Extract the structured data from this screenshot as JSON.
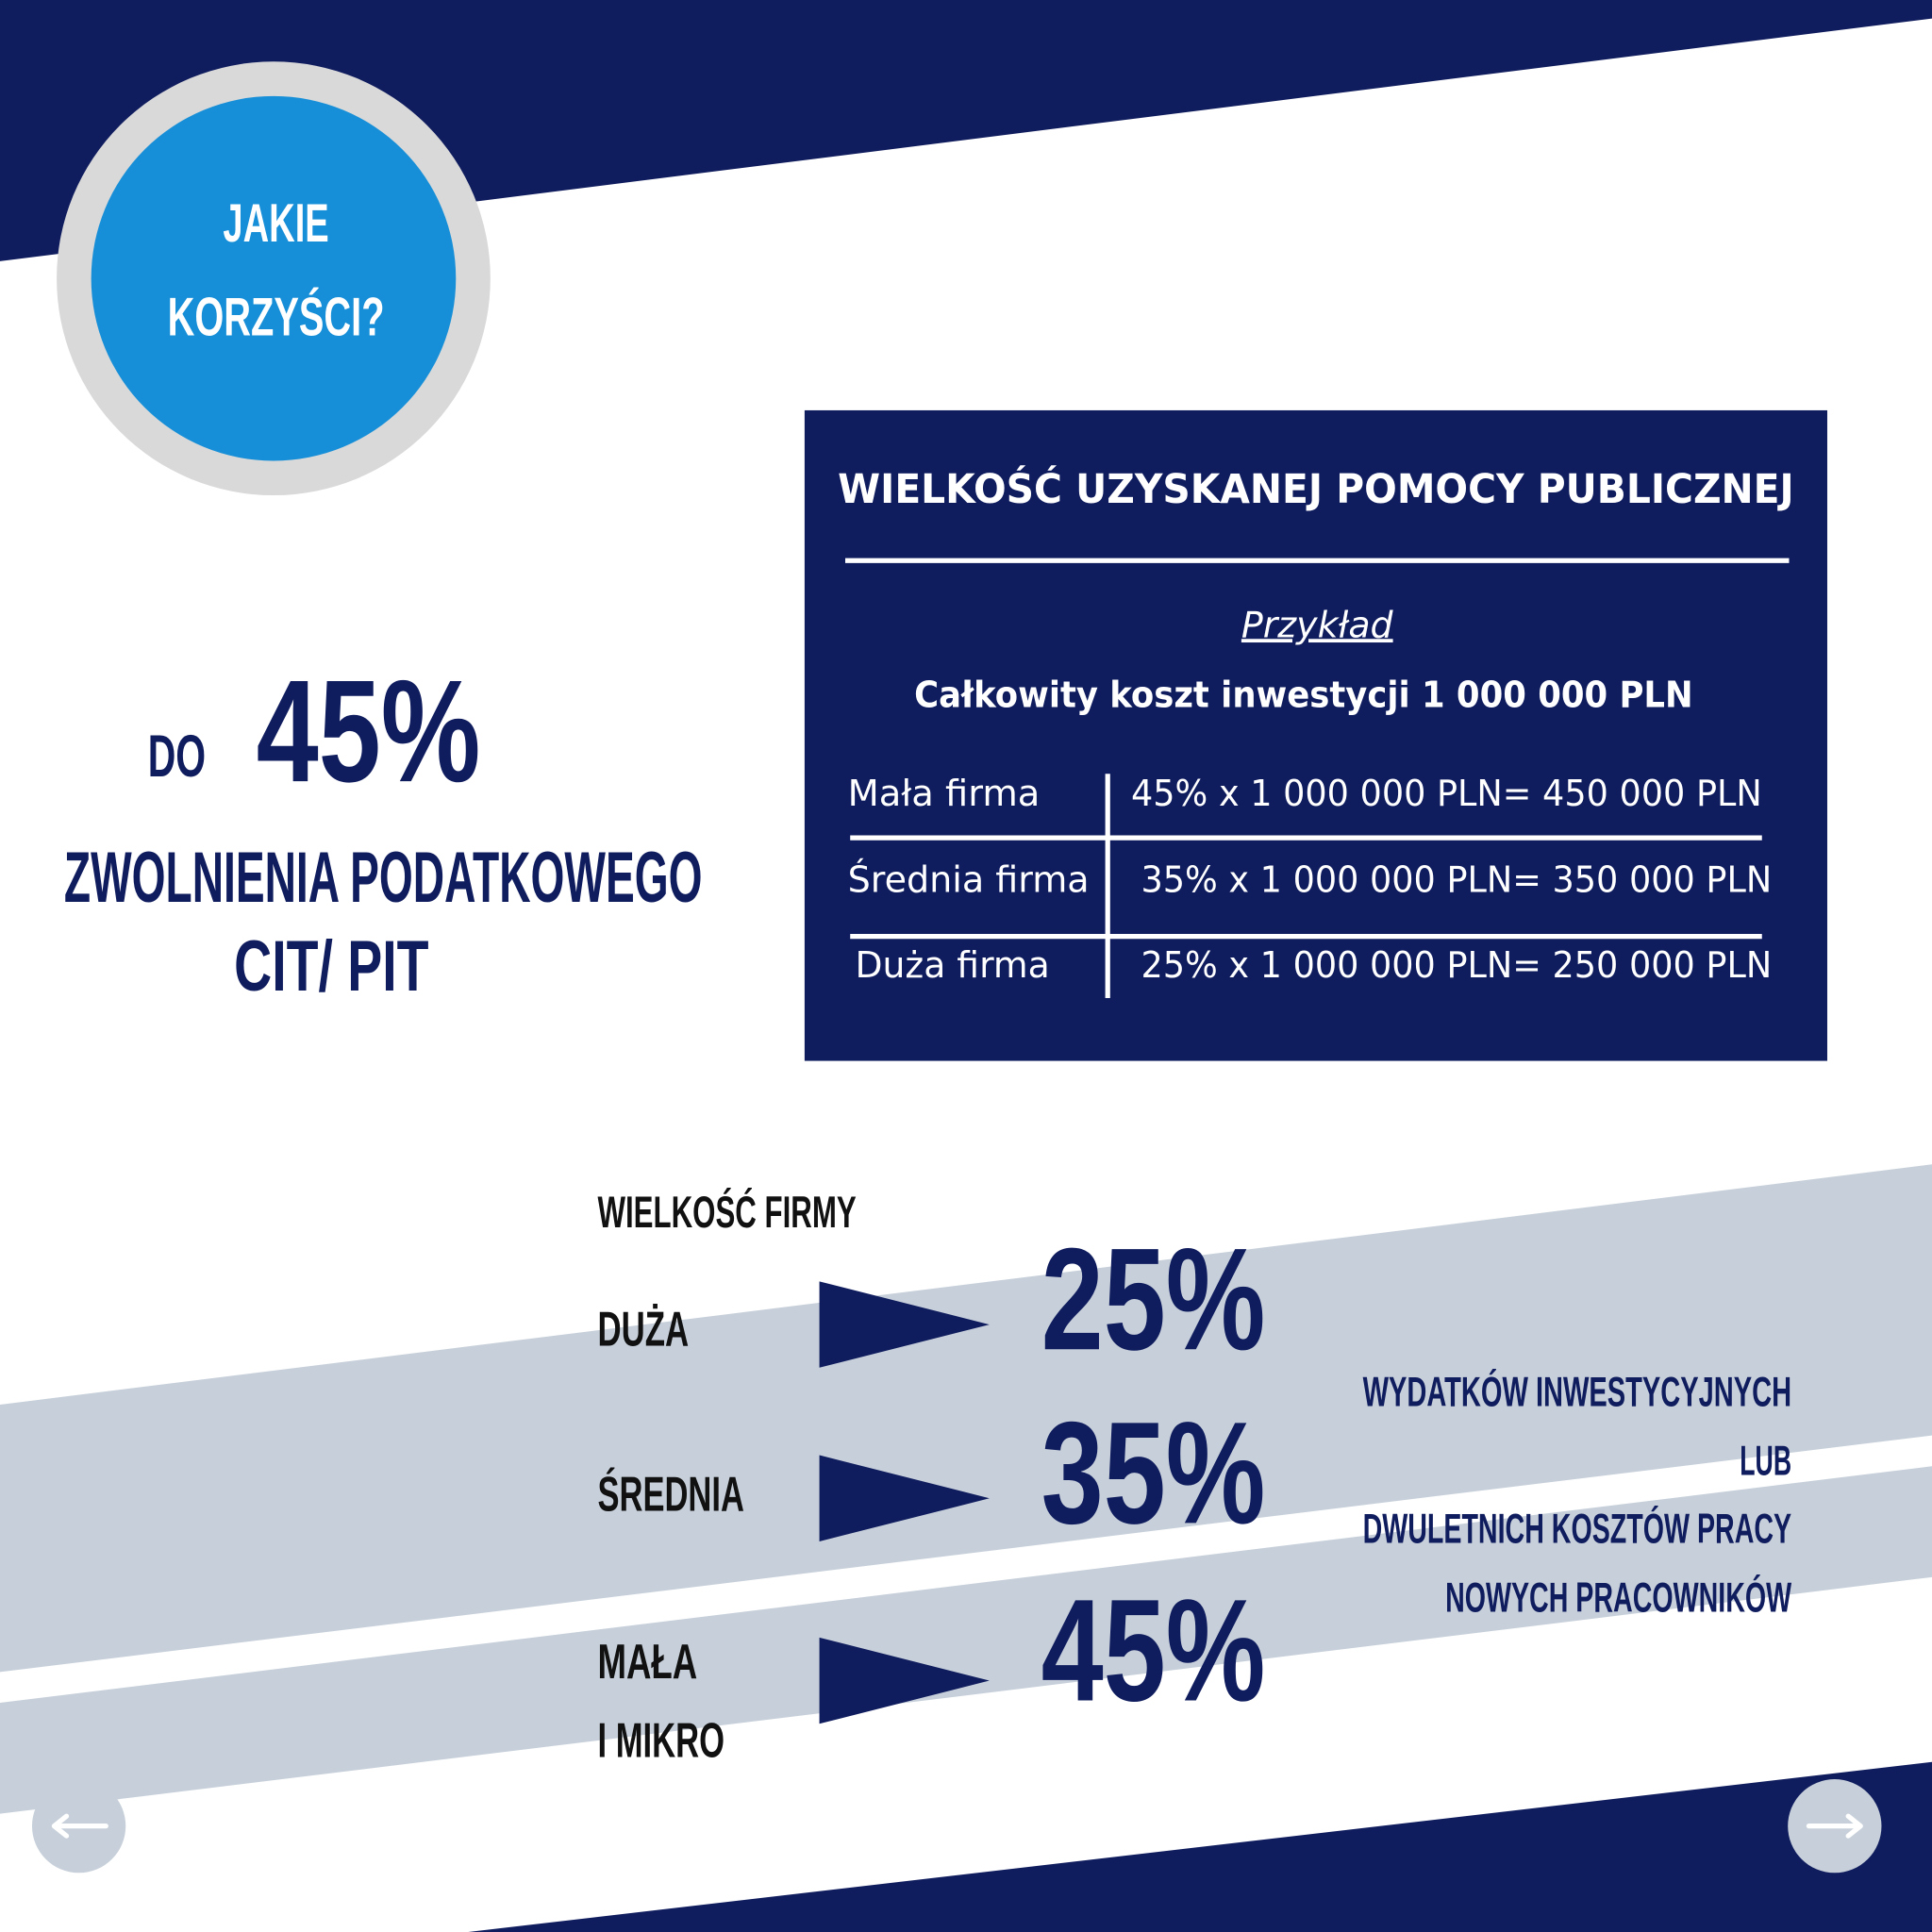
{
  "badge": {
    "lines": [
      "JAKIE",
      "KORZYŚCI?"
    ]
  },
  "headline": {
    "prefix": "DO",
    "value": "45%",
    "line1": "ZWOLNIENIA PODATKOWEGO",
    "line2": "CIT/ PIT"
  },
  "box": {
    "title": "WIELKOŚĆ UZYSKANEJ POMOCY PUBLICZNEJ",
    "example": "Przykład",
    "subtitle": "Całkowity koszt inwestycji 1 000 000 PLN",
    "rows": [
      [
        "Mała firma",
        "45% x 1 000 000 PLN= 450 000 PLN"
      ],
      [
        "Średnia firma",
        "35% x 1 000 000 PLN= 350 000 PLN"
      ],
      [
        "Duża firma",
        "25% x 1 000 000 PLN= 250 000 PLN"
      ]
    ]
  },
  "sizes": {
    "header": "WIELKOŚĆ FIRMY",
    "rows": [
      {
        "label": [
          "DUŻA"
        ],
        "value": "25%"
      },
      {
        "label": [
          "ŚREDNIA"
        ],
        "value": "35%"
      },
      {
        "label": [
          "MAŁA",
          "I MIKRO"
        ],
        "value": "45%"
      }
    ]
  },
  "note": {
    "lines": [
      "WYDATKÓW INWESTYCYJNYCH",
      "LUB",
      "DWULETNICH KOSZTÓW PRACY",
      "NOWYCH PRACOWNIKÓW"
    ]
  }
}
